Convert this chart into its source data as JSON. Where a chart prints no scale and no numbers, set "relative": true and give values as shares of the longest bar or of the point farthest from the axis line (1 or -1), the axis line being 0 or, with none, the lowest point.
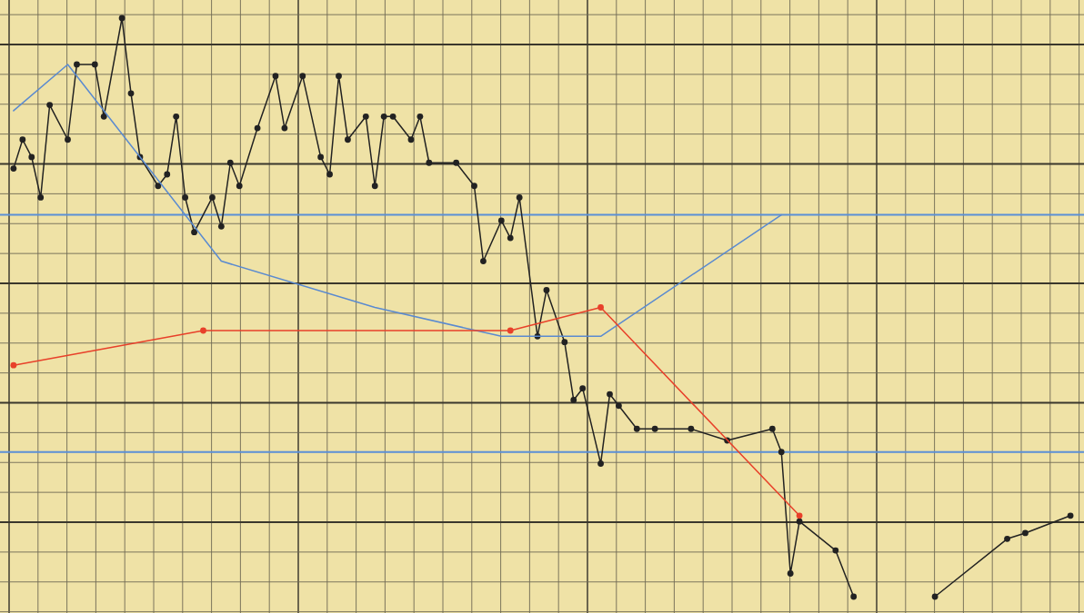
{
  "chart_data": {
    "type": "line",
    "relative": true,
    "grid": true,
    "line_style": "solid",
    "categories": [
      null,
      null,
      null,
      null,
      null,
      null,
      null,
      null,
      null,
      null,
      null,
      null,
      null,
      null,
      null,
      null,
      null,
      null,
      null,
      null,
      null,
      null,
      null,
      null,
      null,
      null,
      null,
      null,
      null,
      null,
      null,
      null,
      null,
      null,
      null,
      null,
      null,
      null,
      null,
      null,
      null,
      null,
      null,
      null,
      null,
      null,
      null,
      null,
      null,
      null,
      null,
      null,
      null,
      null,
      null,
      null,
      null,
      null,
      null,
      null,
      null,
      null,
      null,
      null,
      null,
      null,
      null,
      null,
      null,
      null,
      null,
      null,
      null,
      null,
      null,
      null,
      null,
      null,
      null,
      null,
      null,
      null,
      null,
      null,
      null,
      null,
      null,
      null,
      null,
      null,
      null,
      null,
      null,
      null,
      null,
      null,
      null,
      null,
      null,
      null,
      null,
      null,
      null,
      null,
      null,
      null,
      null,
      null,
      null,
      null,
      null,
      null,
      null,
      null,
      null,
      null,
      null,
      null,
      null,
      null
    ],
    "ref_lines": [
      {
        "axis": "y",
        "value": 0.66,
        "color": "#5b8fd6"
      },
      {
        "axis": "y",
        "value": 0.25,
        "color": "#5b8fd6"
      }
    ],
    "series": [
      {
        "color": "#222222",
        "marker": "circle",
        "values": [
          null,
          0.74,
          0.79,
          0.76,
          0.69,
          0.85,
          null,
          0.79,
          0.92,
          null,
          0.92,
          0.83,
          null,
          1,
          0.87,
          0.76,
          null,
          0.71,
          0.73,
          0.83,
          0.69,
          0.63,
          null,
          0.69,
          0.64,
          0.75,
          0.71,
          null,
          0.81,
          null,
          0.9,
          0.81,
          null,
          0.9,
          null,
          0.76,
          0.73,
          0.9,
          0.79,
          null,
          0.83,
          0.71,
          0.83,
          0.83,
          null,
          0.79,
          0.83,
          0.75,
          null,
          null,
          0.75,
          null,
          0.71,
          0.58,
          null,
          0.65,
          0.62,
          0.69,
          null,
          0.45,
          0.53,
          null,
          0.44,
          0.34,
          0.36,
          null,
          0.23,
          0.35,
          0.33,
          null,
          0.29,
          null,
          0.29,
          null,
          null,
          null,
          0.29,
          null,
          null,
          null,
          0.27,
          null,
          null,
          null,
          null,
          0.29,
          0.25,
          0.04,
          0.13,
          null,
          null,
          null,
          0.08,
          null,
          0,
          null,
          null,
          null,
          null,
          null,
          null,
          null,
          null,
          null,
          null,
          null,
          null,
          null,
          null,
          null,
          null,
          null,
          null,
          null,
          null,
          null,
          null,
          null,
          null,
          null
        ]
      },
      {
        "color": "#222222",
        "marker": "circle",
        "values": [
          null,
          null,
          null,
          null,
          null,
          null,
          null,
          null,
          null,
          null,
          null,
          null,
          null,
          null,
          null,
          null,
          null,
          null,
          null,
          null,
          null,
          null,
          null,
          null,
          null,
          null,
          null,
          null,
          null,
          null,
          null,
          null,
          null,
          null,
          null,
          null,
          null,
          null,
          null,
          null,
          null,
          null,
          null,
          null,
          null,
          null,
          null,
          null,
          null,
          null,
          null,
          null,
          null,
          null,
          null,
          null,
          null,
          null,
          null,
          null,
          null,
          null,
          null,
          null,
          null,
          null,
          null,
          null,
          null,
          null,
          null,
          null,
          null,
          null,
          null,
          null,
          null,
          null,
          null,
          null,
          null,
          null,
          null,
          null,
          null,
          null,
          null,
          null,
          null,
          null,
          null,
          null,
          null,
          null,
          null,
          null,
          null,
          null,
          null,
          null,
          null,
          null,
          null,
          0,
          null,
          null,
          null,
          null,
          null,
          null,
          null,
          0.1,
          null,
          0.11,
          null,
          null,
          null,
          null,
          0.14,
          null
        ]
      },
      {
        "color": "#5a8ad0",
        "marker": "none",
        "values": [
          null,
          0.84,
          null,
          null,
          null,
          null,
          null,
          0.92,
          null,
          null,
          null,
          null,
          null,
          null,
          null,
          null,
          null,
          null,
          null,
          null,
          null,
          null,
          null,
          null,
          0.58,
          null,
          null,
          null,
          null,
          null,
          null,
          null,
          null,
          null,
          null,
          null,
          null,
          null,
          null,
          null,
          null,
          0.5,
          null,
          null,
          null,
          null,
          null,
          null,
          null,
          null,
          null,
          null,
          null,
          null,
          null,
          0.45,
          null,
          null,
          null,
          null,
          null,
          null,
          null,
          null,
          null,
          null,
          0.45,
          null,
          null,
          null,
          null,
          null,
          null,
          null,
          null,
          null,
          null,
          null,
          null,
          null,
          null,
          null,
          null,
          null,
          null,
          null,
          0.66,
          null,
          null,
          null,
          null,
          null,
          null,
          null,
          null,
          null,
          null,
          null,
          null,
          null,
          null,
          null,
          null,
          null,
          null,
          null,
          null,
          null,
          null,
          null,
          null,
          null,
          null,
          null,
          null,
          null,
          null,
          null,
          null,
          null
        ]
      },
      {
        "color": "#e8402a",
        "marker": "circle",
        "values": [
          null,
          0.4,
          null,
          null,
          null,
          null,
          null,
          null,
          null,
          null,
          null,
          null,
          null,
          null,
          null,
          null,
          null,
          null,
          null,
          null,
          null,
          null,
          0.46,
          null,
          null,
          null,
          null,
          null,
          null,
          null,
          null,
          null,
          null,
          null,
          null,
          null,
          null,
          null,
          null,
          null,
          null,
          null,
          null,
          null,
          null,
          null,
          null,
          null,
          null,
          null,
          null,
          null,
          null,
          null,
          null,
          null,
          0.46,
          null,
          null,
          null,
          null,
          null,
          null,
          null,
          null,
          null,
          0.5,
          null,
          null,
          null,
          null,
          null,
          null,
          null,
          null,
          null,
          null,
          null,
          null,
          null,
          null,
          null,
          null,
          null,
          null,
          null,
          null,
          null,
          0.14,
          null,
          null,
          null,
          null,
          null,
          null,
          null,
          null,
          null,
          null,
          null,
          null,
          null,
          null,
          null,
          null,
          null,
          null,
          null,
          null,
          null,
          null,
          null,
          null,
          null,
          null,
          null,
          null,
          null,
          null,
          null
        ]
      }
    ]
  }
}
